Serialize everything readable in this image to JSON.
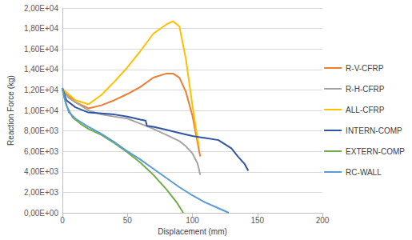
{
  "chart_data": {
    "type": "line",
    "x_label": "Displacement (mm)",
    "y_label": "Reaction Force (kg)",
    "xlim": [
      0,
      200
    ],
    "xticks": [
      0,
      50,
      100,
      150,
      200
    ],
    "ylim": [
      0,
      20000
    ],
    "yticks": [
      {
        "value": 0,
        "label": "0,00E+00"
      },
      {
        "value": 2000,
        "label": "2,00E+03"
      },
      {
        "value": 4000,
        "label": "4,00E+03"
      },
      {
        "value": 6000,
        "label": "6,00E+03"
      },
      {
        "value": 8000,
        "label": "8,00E+03"
      },
      {
        "value": 10000,
        "label": "1,00E+04"
      },
      {
        "value": 12000,
        "label": "1,20E+04"
      },
      {
        "value": 14000,
        "label": "1,40E+04"
      },
      {
        "value": 16000,
        "label": "1,60E+04"
      },
      {
        "value": 18000,
        "label": "1,80E+04"
      },
      {
        "value": 20000,
        "label": "2,00E+04"
      }
    ],
    "grid": true,
    "legend": "right",
    "marker": "none",
    "series": [
      {
        "name": "R-V-CFRP",
        "color": "#ed7d31",
        "x": [
          0,
          10,
          20,
          30,
          40,
          50,
          60,
          70,
          80,
          85,
          90,
          95,
          100,
          103,
          106
        ],
        "values": [
          12000,
          10800,
          10200,
          10500,
          11000,
          11600,
          12300,
          13200,
          13600,
          13600,
          13200,
          11800,
          9500,
          7500,
          5500
        ]
      },
      {
        "name": "R-H-CFRP",
        "color": "#a5a5a5",
        "x": [
          0,
          5,
          10,
          20,
          30,
          40,
          50,
          60,
          70,
          80,
          90,
          95,
          100,
          104,
          106
        ],
        "values": [
          12000,
          11200,
          10800,
          10000,
          9600,
          9400,
          9200,
          8700,
          8200,
          7600,
          7000,
          6500,
          5800,
          4800,
          3700
        ]
      },
      {
        "name": "ALL-CFRP",
        "color": "#ffc000",
        "x": [
          0,
          10,
          20,
          30,
          40,
          50,
          60,
          70,
          80,
          85,
          90,
          95,
          100,
          103,
          105
        ],
        "values": [
          12100,
          11000,
          10600,
          11500,
          12800,
          14200,
          15800,
          17500,
          18400,
          18700,
          18200,
          15000,
          10500,
          8000,
          6500
        ]
      },
      {
        "name": "INTERN-COMP",
        "color": "#2f55a4",
        "x": [
          0,
          3,
          10,
          20,
          30,
          40,
          50,
          60,
          64,
          65,
          70,
          80,
          90,
          100,
          110,
          120,
          130,
          135,
          140,
          143
        ],
        "values": [
          12200,
          11000,
          10300,
          9800,
          9700,
          9600,
          9400,
          9100,
          9000,
          8500,
          8400,
          8100,
          7800,
          7500,
          7300,
          7100,
          6300,
          5500,
          4800,
          4100
        ]
      },
      {
        "name": "EXTERN-COMP",
        "color": "#70ad47",
        "x": [
          0,
          3,
          8,
          15,
          20,
          30,
          40,
          50,
          60,
          70,
          80,
          88,
          93
        ],
        "values": [
          12000,
          10500,
          9300,
          8600,
          8200,
          7600,
          6800,
          5900,
          4900,
          3700,
          2300,
          1000,
          0
        ]
      },
      {
        "name": "RC-WALL",
        "color": "#5b9bd5",
        "x": [
          0,
          2,
          5,
          10,
          20,
          30,
          40,
          50,
          60,
          70,
          80,
          90,
          100,
          110,
          120,
          128
        ],
        "values": [
          12200,
          11000,
          9800,
          9200,
          8400,
          7700,
          6900,
          6000,
          5200,
          4300,
          3400,
          2500,
          1700,
          1000,
          450,
          0
        ]
      }
    ]
  }
}
